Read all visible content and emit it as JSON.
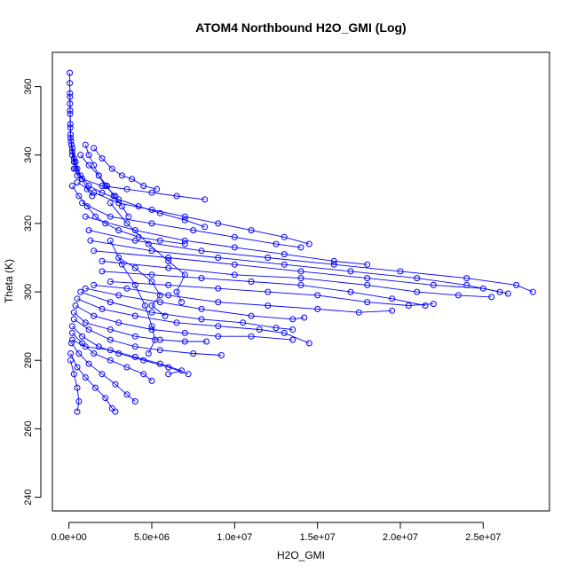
{
  "chart_data": {
    "type": "scatter",
    "title": "ATOM4 Northbound H2O_GMI (Log)",
    "xlabel": "H2O_GMI",
    "ylabel": "Theta (K)",
    "xlim": [
      -1000000,
      29000000
    ],
    "ylim": [
      236,
      370
    ],
    "x_ticks": [
      0,
      5000000,
      10000000,
      15000000,
      20000000,
      25000000
    ],
    "x_tick_labels": [
      "0.0e+00",
      "5.0e+06",
      "1.0e+07",
      "1.5e+07",
      "2.0e+07",
      "2.5e+07"
    ],
    "y_ticks": [
      240,
      260,
      280,
      300,
      320,
      340,
      360
    ],
    "y_tick_labels": [
      "240",
      "260",
      "280",
      "300",
      "320",
      "340",
      "360"
    ],
    "grid": false,
    "legend": "none",
    "marker": "open-circle",
    "color": "#0000ff",
    "series": [
      {
        "values": [
          [
            50000,
            364
          ],
          [
            50000,
            361
          ],
          [
            60000,
            358
          ],
          [
            60000,
            355
          ],
          [
            70000,
            352
          ],
          [
            80000,
            349
          ],
          [
            100000,
            346
          ],
          [
            150000,
            343
          ],
          [
            200000,
            340
          ],
          [
            300000,
            338
          ],
          [
            400000,
            336
          ],
          [
            500000,
            334
          ]
        ]
      },
      {
        "values": [
          [
            60000,
            357
          ],
          [
            70000,
            353
          ],
          [
            90000,
            348
          ],
          [
            120000,
            344
          ],
          [
            200000,
            341
          ],
          [
            300000,
            339
          ],
          [
            500000,
            336
          ],
          [
            800000,
            333
          ],
          [
            1100000,
            330
          ],
          [
            1400000,
            328
          ]
        ]
      },
      {
        "values": [
          [
            100000,
            345
          ],
          [
            200000,
            342
          ],
          [
            400000,
            338
          ],
          [
            700000,
            334
          ],
          [
            1200000,
            331
          ],
          [
            2000000,
            329
          ],
          [
            3000000,
            327
          ],
          [
            4200000,
            325
          ],
          [
            5500000,
            323
          ],
          [
            7000000,
            321
          ],
          [
            8200000,
            319
          ]
        ]
      },
      {
        "values": [
          [
            300000,
            336
          ],
          [
            800000,
            333
          ],
          [
            2000000,
            331
          ],
          [
            3500000,
            330
          ],
          [
            5000000,
            329
          ],
          [
            6500000,
            328
          ],
          [
            8200000,
            327
          ]
        ]
      },
      {
        "values": [
          [
            500000,
            332
          ],
          [
            1500000,
            329
          ],
          [
            3000000,
            326
          ],
          [
            5000000,
            324
          ],
          [
            7000000,
            322
          ],
          [
            9000000,
            320
          ],
          [
            11000000,
            318
          ],
          [
            13000000,
            316
          ],
          [
            14500000,
            314
          ]
        ]
      },
      {
        "values": [
          [
            800000,
            326
          ],
          [
            2500000,
            322
          ],
          [
            5000000,
            320
          ],
          [
            7500000,
            318
          ],
          [
            10000000,
            316
          ],
          [
            12500000,
            314
          ],
          [
            14000000,
            313
          ]
        ]
      },
      {
        "values": [
          [
            1000000,
            322
          ],
          [
            4000000,
            318
          ],
          [
            7000000,
            315
          ],
          [
            10000000,
            313
          ],
          [
            13000000,
            311
          ],
          [
            16000000,
            309
          ],
          [
            18000000,
            308
          ]
        ]
      },
      {
        "values": [
          [
            1200000,
            318
          ],
          [
            4000000,
            315
          ],
          [
            8000000,
            312
          ],
          [
            12000000,
            310
          ],
          [
            16000000,
            308
          ],
          [
            20000000,
            306
          ],
          [
            24000000,
            304
          ],
          [
            27000000,
            302
          ],
          [
            28000000,
            300
          ]
        ]
      },
      {
        "values": [
          [
            1300000,
            315
          ],
          [
            5000000,
            312
          ],
          [
            9000000,
            310
          ],
          [
            13000000,
            308
          ],
          [
            17000000,
            306
          ],
          [
            21000000,
            304
          ],
          [
            24000000,
            302
          ],
          [
            26000000,
            300
          ]
        ]
      },
      {
        "values": [
          [
            1500000,
            312
          ],
          [
            6000000,
            310
          ],
          [
            10000000,
            308
          ],
          [
            14000000,
            306
          ],
          [
            18000000,
            304
          ],
          [
            22000000,
            302
          ],
          [
            25000000,
            301
          ],
          [
            26500000,
            299.5
          ]
        ]
      },
      {
        "values": [
          [
            2000000,
            309
          ],
          [
            6000000,
            307
          ],
          [
            10000000,
            305
          ],
          [
            14000000,
            304
          ],
          [
            18000000,
            302
          ],
          [
            21000000,
            300
          ],
          [
            23500000,
            299
          ],
          [
            25500000,
            298.5
          ]
        ]
      },
      {
        "values": [
          [
            2000000,
            306
          ],
          [
            5000000,
            305
          ],
          [
            8000000,
            304
          ],
          [
            11000000,
            303
          ],
          [
            14000000,
            302
          ],
          [
            17000000,
            300
          ],
          [
            19500000,
            298
          ],
          [
            21500000,
            296
          ]
        ]
      },
      {
        "values": [
          [
            2500000,
            303
          ],
          [
            6000000,
            302
          ],
          [
            9000000,
            301
          ],
          [
            12000000,
            300
          ],
          [
            15000000,
            299
          ],
          [
            18000000,
            297
          ],
          [
            20500000,
            296
          ],
          [
            22000000,
            296.5
          ]
        ]
      },
      {
        "values": [
          [
            1500000,
            302
          ],
          [
            3500000,
            301
          ],
          [
            6000000,
            299
          ],
          [
            9000000,
            297
          ],
          [
            12000000,
            296
          ],
          [
            15000000,
            295
          ],
          [
            17500000,
            294
          ],
          [
            19500000,
            294.5
          ]
        ]
      },
      {
        "values": [
          [
            1000000,
            301
          ],
          [
            3000000,
            299
          ],
          [
            5500000,
            297
          ],
          [
            8000000,
            295
          ],
          [
            11000000,
            293
          ],
          [
            13500000,
            292
          ],
          [
            14200000,
            292.5
          ]
        ]
      },
      {
        "values": [
          [
            700000,
            300
          ],
          [
            2500000,
            297
          ],
          [
            5000000,
            294
          ],
          [
            8000000,
            292
          ],
          [
            10500000,
            291
          ],
          [
            12500000,
            289.5
          ],
          [
            13500000,
            289
          ]
        ]
      },
      {
        "values": [
          [
            500000,
            298
          ],
          [
            2000000,
            295
          ],
          [
            4000000,
            293
          ],
          [
            6500000,
            291
          ],
          [
            9000000,
            290
          ],
          [
            11500000,
            289
          ],
          [
            13000000,
            288
          ],
          [
            14500000,
            285
          ]
        ]
      },
      {
        "values": [
          [
            400000,
            296
          ],
          [
            1500000,
            293
          ],
          [
            3000000,
            291
          ],
          [
            5000000,
            289
          ],
          [
            7000000,
            288
          ],
          [
            9000000,
            287
          ],
          [
            11000000,
            287
          ],
          [
            13500000,
            286
          ]
        ]
      },
      {
        "values": [
          [
            300000,
            294
          ],
          [
            1000000,
            291
          ],
          [
            2500000,
            289
          ],
          [
            4000000,
            287
          ],
          [
            5500000,
            286
          ],
          [
            7000000,
            285.5
          ],
          [
            8300000,
            285.5
          ]
        ]
      },
      {
        "values": [
          [
            300000,
            292
          ],
          [
            1200000,
            289
          ],
          [
            2500000,
            286
          ],
          [
            4000000,
            284
          ],
          [
            5500000,
            283
          ],
          [
            7500000,
            282
          ],
          [
            9200000,
            281.5
          ]
        ]
      },
      {
        "values": [
          [
            200000,
            290
          ],
          [
            800000,
            287
          ],
          [
            1800000,
            284
          ],
          [
            3000000,
            282
          ],
          [
            4500000,
            280
          ],
          [
            6000000,
            278
          ],
          [
            7200000,
            276
          ]
        ]
      },
      {
        "values": [
          [
            200000,
            288
          ],
          [
            800000,
            285
          ],
          [
            1500000,
            282
          ],
          [
            2500000,
            280
          ],
          [
            3500000,
            278
          ],
          [
            4500000,
            276
          ],
          [
            5000000,
            274
          ]
        ]
      },
      {
        "values": [
          [
            150000,
            285
          ],
          [
            600000,
            282
          ],
          [
            1200000,
            279
          ],
          [
            2000000,
            276
          ],
          [
            2800000,
            273
          ],
          [
            3500000,
            270
          ],
          [
            4000000,
            268
          ]
        ]
      },
      {
        "values": [
          [
            100000,
            282
          ],
          [
            500000,
            278
          ],
          [
            1000000,
            275
          ],
          [
            1600000,
            272
          ],
          [
            2200000,
            269
          ],
          [
            2600000,
            266
          ],
          [
            2800000,
            265
          ]
        ]
      },
      {
        "values": [
          [
            100000,
            280
          ],
          [
            300000,
            276
          ],
          [
            500000,
            272
          ],
          [
            600000,
            268
          ],
          [
            500000,
            265
          ]
        ]
      },
      {
        "values": [
          [
            200000,
            286
          ],
          [
            1000000,
            284
          ],
          [
            2500000,
            283
          ],
          [
            4000000,
            281
          ],
          [
            5500000,
            279
          ],
          [
            6800000,
            277
          ],
          [
            6000000,
            276
          ]
        ]
      },
      {
        "values": [
          [
            1000000,
            343
          ],
          [
            1200000,
            340
          ],
          [
            1500000,
            337
          ],
          [
            1800000,
            334
          ],
          [
            2200000,
            331
          ],
          [
            2800000,
            328
          ]
        ]
      },
      {
        "values": [
          [
            1500000,
            342
          ],
          [
            2000000,
            339
          ],
          [
            2600000,
            336
          ],
          [
            3200000,
            334
          ],
          [
            3800000,
            333
          ],
          [
            4500000,
            331
          ],
          [
            5300000,
            330
          ]
        ]
      },
      {
        "values": [
          [
            700000,
            340
          ],
          [
            1200000,
            337
          ],
          [
            1800000,
            334
          ],
          [
            2300000,
            331
          ],
          [
            2700000,
            328
          ],
          [
            3200000,
            325
          ],
          [
            3600000,
            322
          ]
        ]
      },
      {
        "values": [
          [
            200000,
            331
          ],
          [
            600000,
            328
          ],
          [
            1100000,
            325
          ],
          [
            1600000,
            322
          ],
          [
            2200000,
            320
          ],
          [
            3000000,
            318
          ],
          [
            4200000,
            316
          ],
          [
            5500000,
            315
          ],
          [
            7000000,
            314
          ]
        ]
      },
      {
        "values": [
          [
            2500000,
            326
          ],
          [
            3500000,
            320
          ],
          [
            4800000,
            314
          ],
          [
            6000000,
            309
          ],
          [
            7000000,
            305
          ],
          [
            6500000,
            300
          ],
          [
            6800000,
            297
          ]
        ]
      },
      {
        "values": [
          [
            3000000,
            310
          ],
          [
            4000000,
            307
          ],
          [
            5000000,
            303
          ],
          [
            5500000,
            299
          ],
          [
            5000000,
            296
          ],
          [
            5800000,
            293
          ]
        ]
      },
      {
        "values": [
          [
            2500000,
            315
          ],
          [
            3200000,
            308
          ],
          [
            4000000,
            302
          ],
          [
            4600000,
            296
          ],
          [
            5000000,
            290
          ],
          [
            5200000,
            286
          ],
          [
            4800000,
            282
          ]
        ]
      }
    ]
  }
}
